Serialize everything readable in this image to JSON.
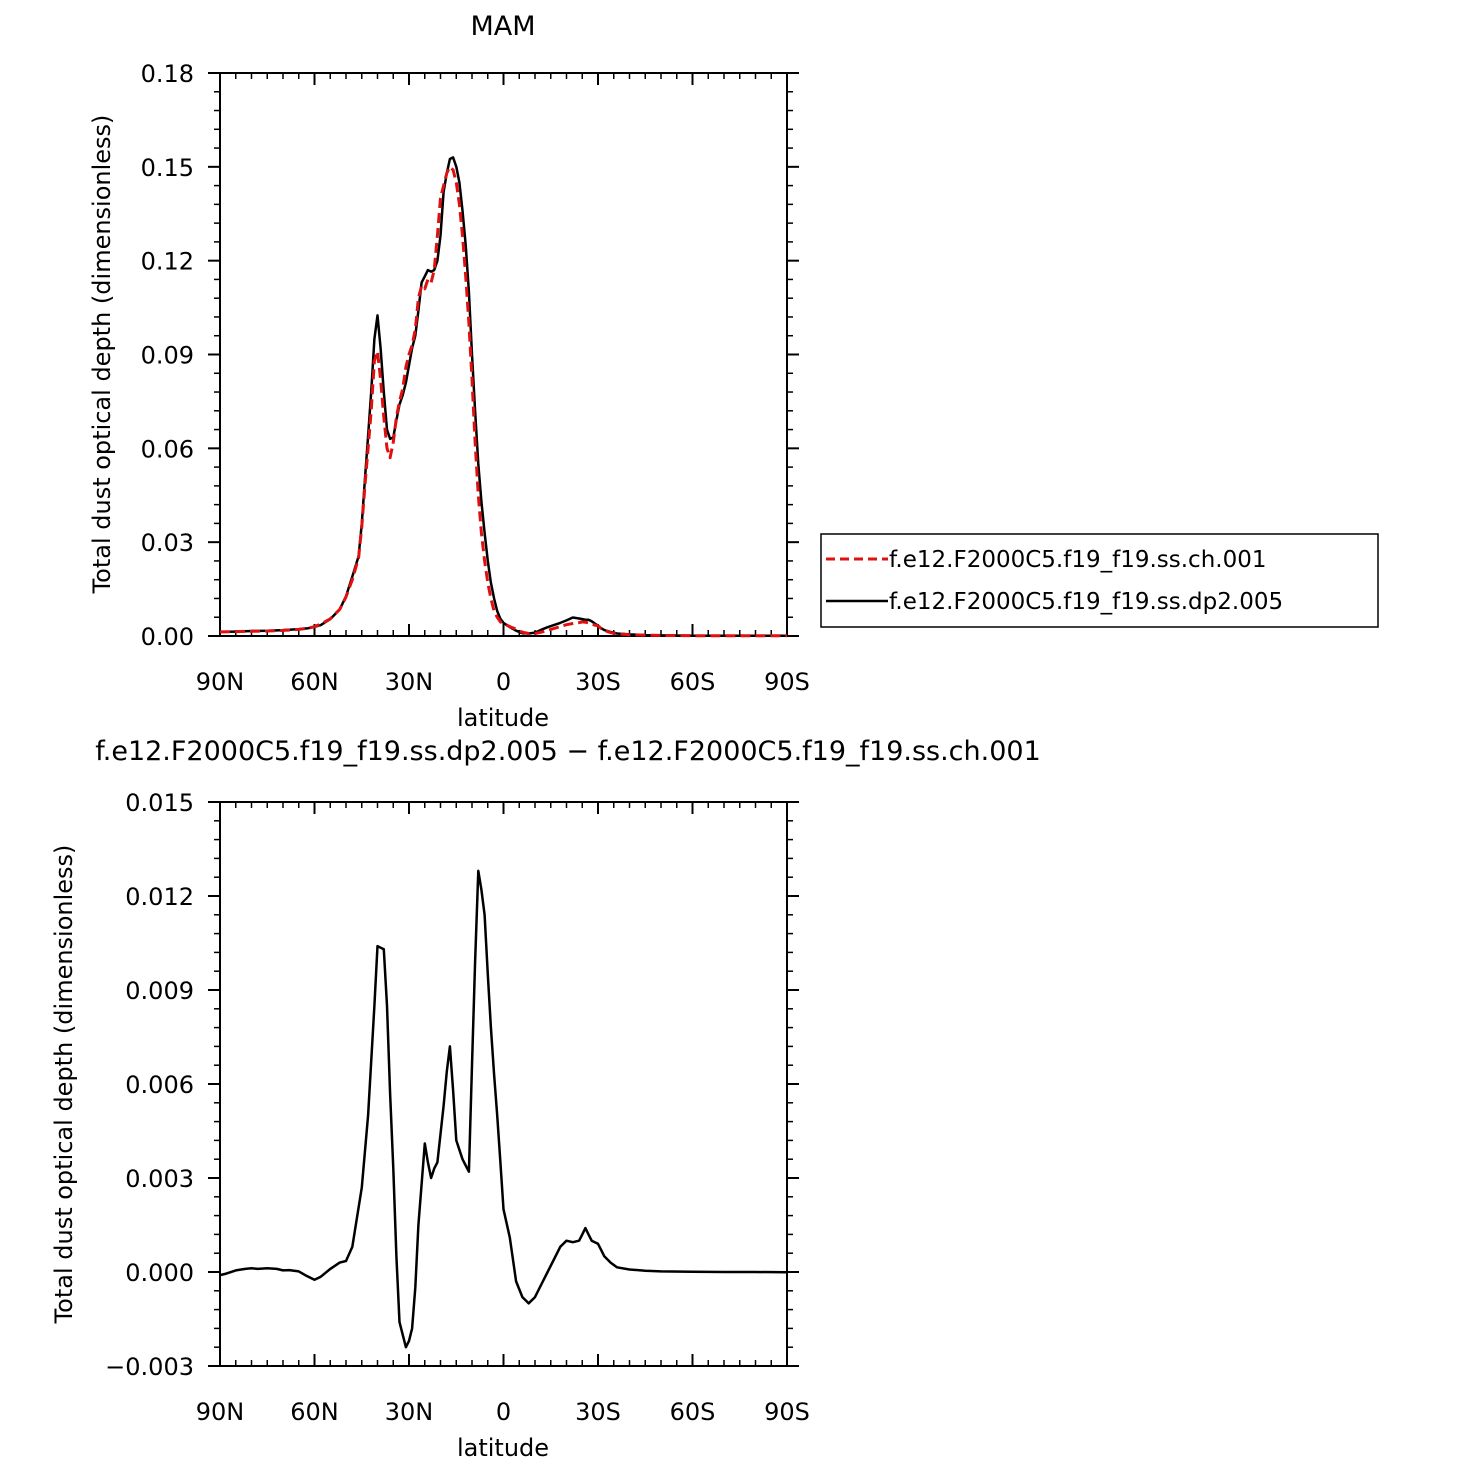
{
  "chart_data": [
    {
      "type": "line",
      "title": "MAM",
      "xlabel": "latitude",
      "ylabel": "Total dust optical depth (dimensionless)",
      "xlim": [
        90,
        -90
      ],
      "ylim": [
        0,
        0.18
      ],
      "xticks": [
        90,
        60,
        30,
        0,
        -30,
        -60,
        -90
      ],
      "xticklabels": [
        "90N",
        "60N",
        "30N",
        "0",
        "30S",
        "60S",
        "90S"
      ],
      "yticks": [
        0,
        0.03,
        0.06,
        0.09,
        0.12,
        0.15,
        0.18
      ],
      "yticklabels": [
        "0.00",
        "0.03",
        "0.06",
        "0.09",
        "0.12",
        "0.15",
        "0.18"
      ],
      "grid": false,
      "legend_position": "right",
      "x": [
        90,
        85,
        80,
        75,
        70,
        65,
        62,
        60,
        58,
        55,
        52,
        50,
        48,
        46,
        45,
        44,
        43,
        42,
        41,
        40,
        39,
        38,
        37,
        36,
        35,
        34,
        33,
        32,
        31,
        30,
        29,
        28,
        27,
        26,
        25,
        24,
        23,
        22,
        21,
        20,
        19,
        18,
        17,
        16,
        15,
        14,
        13,
        12,
        11,
        10,
        9,
        8,
        7,
        6,
        5,
        4,
        3,
        2,
        1,
        0,
        -2,
        -4,
        -6,
        -8,
        -10,
        -12,
        -14,
        -16,
        -18,
        -20,
        -22,
        -24,
        -25,
        -26,
        -27,
        -28,
        -29,
        -30,
        -31,
        -32,
        -34,
        -36,
        -40,
        -45,
        -50,
        -60,
        -70,
        -80,
        -90
      ],
      "series": [
        {
          "name": "f.e12.F2000C5.f19_f19.ss.ch.001",
          "color": "#e01010",
          "dash": true,
          "values": [
            0.0013,
            0.0014,
            0.0015,
            0.0016,
            0.0018,
            0.0021,
            0.0025,
            0.003,
            0.0038,
            0.0055,
            0.0085,
            0.0125,
            0.018,
            0.025,
            0.035,
            0.048,
            0.06,
            0.072,
            0.088,
            0.091,
            0.082,
            0.07,
            0.06,
            0.057,
            0.062,
            0.07,
            0.075,
            0.079,
            0.086,
            0.09,
            0.093,
            0.098,
            0.108,
            0.112,
            0.111,
            0.114,
            0.113,
            0.117,
            0.128,
            0.14,
            0.144,
            0.148,
            0.15,
            0.149,
            0.145,
            0.138,
            0.128,
            0.115,
            0.1,
            0.082,
            0.062,
            0.045,
            0.033,
            0.024,
            0.017,
            0.012,
            0.008,
            0.006,
            0.0045,
            0.004,
            0.003,
            0.0022,
            0.0012,
            0.0008,
            0.0008,
            0.0012,
            0.0018,
            0.0024,
            0.003,
            0.0036,
            0.004,
            0.0043,
            0.0045,
            0.0044,
            0.0042,
            0.0038,
            0.0035,
            0.0033,
            0.0024,
            0.0018,
            0.0011,
            0.0007,
            0.0004,
            0.0003,
            0.0002,
            0.0001,
            0.0001,
            0.0001,
            0.0001
          ]
        },
        {
          "name": "f.e12.F2000C5.f19_f19.ss.dp2.005",
          "color": "#000000",
          "dash": false,
          "values": [
            0.0013,
            0.0014,
            0.0016,
            0.0017,
            0.0019,
            0.0022,
            0.0025,
            0.0029,
            0.0035,
            0.0054,
            0.0085,
            0.0127,
            0.019,
            0.0255,
            0.036,
            0.05,
            0.064,
            0.078,
            0.095,
            0.1025,
            0.092,
            0.078,
            0.066,
            0.063,
            0.0635,
            0.069,
            0.074,
            0.077,
            0.081,
            0.0865,
            0.092,
            0.096,
            0.104,
            0.113,
            0.115,
            0.117,
            0.1165,
            0.117,
            0.12,
            0.128,
            0.142,
            0.148,
            0.1525,
            0.153,
            0.15,
            0.145,
            0.136,
            0.125,
            0.11,
            0.09,
            0.072,
            0.055,
            0.043,
            0.033,
            0.024,
            0.017,
            0.012,
            0.008,
            0.0055,
            0.0042,
            0.0028,
            0.0017,
            0.0009,
            0.0008,
            0.0011,
            0.002,
            0.0028,
            0.0035,
            0.0042,
            0.005,
            0.0059,
            0.0056,
            0.0054,
            0.0052,
            0.0052,
            0.0047,
            0.004,
            0.0033,
            0.0025,
            0.0019,
            0.0013,
            0.0008,
            0.0005,
            0.0003,
            0.0002,
            0.0001,
            0.0001,
            0.0001,
            0.0001
          ]
        }
      ]
    },
    {
      "type": "line",
      "title": "f.e12.F2000C5.f19_f19.ss.dp2.005 − f.e12.F2000C5.f19_f19.ss.ch.001",
      "xlabel": "latitude",
      "ylabel": "Total dust optical depth (dimensionless)",
      "xlim": [
        90,
        -90
      ],
      "ylim": [
        -0.003,
        0.015
      ],
      "xticks": [
        90,
        60,
        30,
        0,
        -30,
        -60,
        -90
      ],
      "xticklabels": [
        "90N",
        "60N",
        "30N",
        "0",
        "30S",
        "60S",
        "90S"
      ],
      "yticks": [
        -0.003,
        0,
        0.003,
        0.006,
        0.009,
        0.012,
        0.015
      ],
      "yticklabels": [
        "−0.003",
        "0.000",
        "0.003",
        "0.006",
        "0.009",
        "0.012",
        "0.015"
      ],
      "grid": false,
      "x": [
        90,
        88,
        85,
        82,
        80,
        78,
        75,
        72,
        70,
        68,
        65,
        63,
        61,
        60,
        58,
        55,
        52,
        50,
        48,
        45,
        43,
        41,
        40,
        39,
        38,
        37,
        36,
        35,
        34,
        33,
        32,
        31,
        30,
        29,
        28,
        27,
        26,
        25,
        24,
        23,
        22,
        21,
        20,
        19,
        18,
        17,
        16,
        15,
        14,
        13,
        12,
        11,
        10,
        9,
        8,
        7,
        6,
        5,
        4,
        3,
        2,
        1,
        0,
        -2,
        -4,
        -6,
        -8,
        -10,
        -12,
        -14,
        -16,
        -18,
        -20,
        -22,
        -24,
        -25,
        -26,
        -27,
        -28,
        -29,
        -30,
        -31,
        -32,
        -34,
        -36,
        -40,
        -45,
        -50,
        -60,
        -70,
        -80,
        -90
      ],
      "series": [
        {
          "name": "",
          "color": "#000000",
          "dash": false,
          "values": [
            -0.0001,
            -5e-05,
            5e-05,
            0.0001,
            0.00012,
            0.0001,
            0.00012,
            0.0001,
            5e-05,
            6e-05,
            2e-05,
            -0.0001,
            -0.0002,
            -0.00025,
            -0.00015,
            0.0001,
            0.0003,
            0.00035,
            0.0008,
            0.0027,
            0.005,
            0.0085,
            0.0104,
            0.01035,
            0.0103,
            0.0085,
            0.0057,
            0.0033,
            0.0005,
            -0.0016,
            -0.002,
            -0.0024,
            -0.0022,
            -0.0018,
            -0.0005,
            0.0015,
            0.0028,
            0.0041,
            0.0035,
            0.003,
            0.0033,
            0.0035,
            0.0044,
            0.0053,
            0.0064,
            0.0072,
            0.0058,
            0.0042,
            0.0039,
            0.0036,
            0.0034,
            0.0032,
            0.0066,
            0.0099,
            0.0128,
            0.0122,
            0.0114,
            0.0095,
            0.0078,
            0.0063,
            0.005,
            0.0035,
            0.002,
            0.0011,
            -0.0003,
            -0.0008,
            -0.001,
            -0.0008,
            -0.0004,
            0,
            0.0004,
            0.0008,
            0.001,
            0.00095,
            0.001,
            0.0012,
            0.0014,
            0.0012,
            0.001,
            0.00095,
            0.0009,
            0.0007,
            0.0005,
            0.0003,
            0.00015,
            8e-05,
            4e-05,
            2e-05,
            1e-05,
            0,
            0,
            -1e-05
          ]
        }
      ]
    }
  ]
}
